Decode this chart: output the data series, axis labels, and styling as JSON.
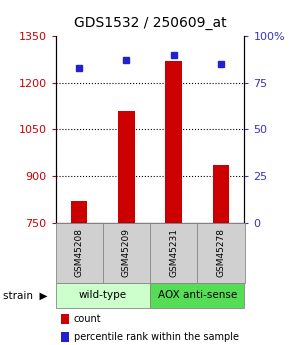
{
  "title": "GDS1532 / 250609_at",
  "samples": [
    "GSM45208",
    "GSM45209",
    "GSM45231",
    "GSM45278"
  ],
  "counts": [
    820,
    1110,
    1270,
    935
  ],
  "percentiles": [
    83,
    87,
    90,
    85
  ],
  "ylim_left": [
    750,
    1350
  ],
  "ylim_right": [
    0,
    100
  ],
  "yticks_left": [
    750,
    900,
    1050,
    1200,
    1350
  ],
  "yticks_right": [
    0,
    25,
    50,
    75,
    100
  ],
  "ytick_labels_right": [
    "0",
    "25",
    "50",
    "75",
    "100%"
  ],
  "bar_color": "#cc0000",
  "dot_color": "#2222cc",
  "bar_width": 0.35,
  "groups": [
    {
      "label": "wild-type",
      "indices": [
        0,
        1
      ],
      "color": "#ccffcc"
    },
    {
      "label": "AOX anti-sense",
      "indices": [
        2,
        3
      ],
      "color": "#55dd55"
    }
  ],
  "sample_box_color": "#d0d0d0",
  "legend_items": [
    {
      "color": "#cc0000",
      "label": "count"
    },
    {
      "color": "#2222cc",
      "label": "percentile rank within the sample"
    }
  ],
  "left_tick_color": "#cc0000",
  "right_tick_color": "#3333cc",
  "title_fontsize": 10
}
